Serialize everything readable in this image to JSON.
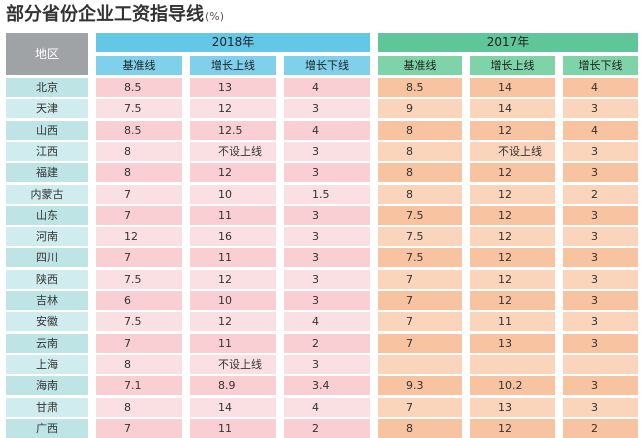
{
  "title": "部分省份企业工资指导线",
  "unit": "(%)",
  "header": {
    "region": "地区",
    "years": [
      "2018年",
      "2017年"
    ],
    "columns": [
      "基准线",
      "增长上线",
      "增长下线"
    ]
  },
  "rows": [
    {
      "region": "北京",
      "y2018": [
        "8.5",
        "13",
        "4"
      ],
      "y2017": [
        "8.5",
        "14",
        "4"
      ]
    },
    {
      "region": "天津",
      "y2018": [
        "7.5",
        "12",
        "3"
      ],
      "y2017": [
        "9",
        "14",
        "3"
      ]
    },
    {
      "region": "山西",
      "y2018": [
        "8.5",
        "12.5",
        "4"
      ],
      "y2017": [
        "8",
        "12",
        "4"
      ]
    },
    {
      "region": "江西",
      "y2018": [
        "8",
        "不设上线",
        "3"
      ],
      "y2017": [
        "8",
        "不设上线",
        "3"
      ]
    },
    {
      "region": "福建",
      "y2018": [
        "8",
        "12",
        "3"
      ],
      "y2017": [
        "8",
        "12",
        "3"
      ]
    },
    {
      "region": "内蒙古",
      "y2018": [
        "7",
        "10",
        "1.5"
      ],
      "y2017": [
        "8",
        "12",
        "2"
      ]
    },
    {
      "region": "山东",
      "y2018": [
        "7",
        "11",
        "3"
      ],
      "y2017": [
        "7.5",
        "12",
        "3"
      ]
    },
    {
      "region": "河南",
      "y2018": [
        "12",
        "16",
        "3"
      ],
      "y2017": [
        "7.5",
        "12",
        "3"
      ]
    },
    {
      "region": "四川",
      "y2018": [
        "7",
        "11",
        "3"
      ],
      "y2017": [
        "7.5",
        "12",
        "3"
      ]
    },
    {
      "region": "陕西",
      "y2018": [
        "7.5",
        "12",
        "3"
      ],
      "y2017": [
        "7",
        "12",
        "3"
      ]
    },
    {
      "region": "吉林",
      "y2018": [
        "6",
        "10",
        "3"
      ],
      "y2017": [
        "7",
        "12",
        "3"
      ]
    },
    {
      "region": "安徽",
      "y2018": [
        "7.5",
        "12",
        "4"
      ],
      "y2017": [
        "7",
        "11",
        "3"
      ]
    },
    {
      "region": "云南",
      "y2018": [
        "7",
        "11",
        "2"
      ],
      "y2017": [
        "7",
        "13",
        "3"
      ]
    },
    {
      "region": "上海",
      "y2018": [
        "8",
        "不设上线",
        "3"
      ],
      "y2017": [
        "",
        "",
        ""
      ]
    },
    {
      "region": "海南",
      "y2018": [
        "7.1",
        "8.9",
        "3.4"
      ],
      "y2017": [
        "9.3",
        "10.2",
        "3"
      ]
    },
    {
      "region": "甘肃",
      "y2018": [
        "8",
        "14",
        "4"
      ],
      "y2017": [
        "7",
        "13",
        "3"
      ]
    },
    {
      "region": "广西",
      "y2018": [
        "7",
        "11",
        "2"
      ],
      "y2017": [
        "8",
        "12",
        "2"
      ]
    }
  ]
}
